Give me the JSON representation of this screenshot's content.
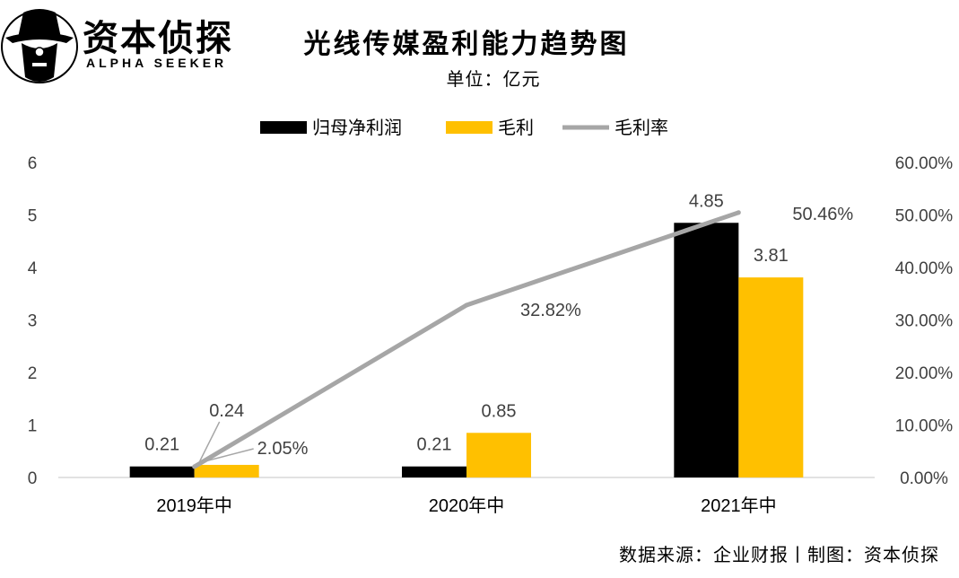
{
  "logo": {
    "cn": "资本侦探",
    "en": "ALPHA SEEKER"
  },
  "title": "光线传媒盈利能力趋势图",
  "unit": "单位：亿元",
  "source": "数据来源：企业财报丨制图：资本侦探",
  "colors": {
    "net_profit": "#000000",
    "gross_profit": "#FFC000",
    "margin": "#A6A6A6"
  },
  "chart_data": {
    "type": "bar",
    "categories": [
      "2019年中",
      "2020年中",
      "2021年中"
    ],
    "series": [
      {
        "name": "归母净利润",
        "kind": "bar",
        "axis": "left",
        "values": [
          0.21,
          0.21,
          4.85
        ],
        "labels": [
          "0.21",
          "0.21",
          "4.85"
        ]
      },
      {
        "name": "毛利",
        "kind": "bar",
        "axis": "left",
        "values": [
          0.24,
          0.85,
          3.81
        ],
        "labels": [
          "0.24",
          "0.85",
          "3.81"
        ]
      },
      {
        "name": "毛利率",
        "kind": "line",
        "axis": "right",
        "values": [
          2.05,
          32.82,
          50.46
        ],
        "labels": [
          "2.05%",
          "32.82%",
          "50.46%"
        ]
      }
    ],
    "left_axis": {
      "ylim": [
        0,
        6
      ],
      "ticks": [
        "0",
        "1",
        "2",
        "3",
        "4",
        "5",
        "6"
      ]
    },
    "right_axis": {
      "ylim": [
        0,
        60
      ],
      "ticks": [
        "0.00%",
        "10.00%",
        "20.00%",
        "30.00%",
        "40.00%",
        "50.00%",
        "60.00%"
      ]
    },
    "legend": {
      "position": "top-center"
    },
    "grid": false
  }
}
